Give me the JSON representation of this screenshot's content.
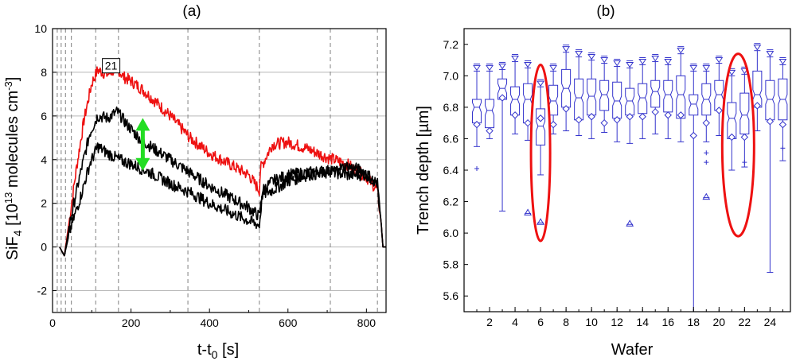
{
  "chart_data": [
    {
      "type": "line",
      "panel_label": "(a)",
      "xlabel": {
        "main": "t-t",
        "sub": "0",
        "unit": " [s]"
      },
      "ylabel": {
        "a": "SiF",
        "b": "4",
        "c": " [10",
        "d": "13",
        "e": " molecules cm",
        "f": "-3",
        "g": "]"
      },
      "xlim": [
        0,
        850
      ],
      "ylim": [
        -3,
        10
      ],
      "xticks": [
        0,
        200,
        400,
        600,
        800
      ],
      "yticks": [
        -2,
        0,
        2,
        4,
        6,
        8,
        10
      ],
      "grid_y": [
        -2,
        0,
        2,
        4,
        6,
        8
      ],
      "vlines": [
        12,
        22,
        33,
        48,
        110,
        168,
        345,
        527,
        708,
        828
      ],
      "annotation": {
        "text": "21",
        "x": 200,
        "y": 8.3
      },
      "arrow": {
        "x": 230,
        "y_top": 5.8,
        "y_bottom": 3.6,
        "color": "#22dd22"
      },
      "series": [
        {
          "name": "red",
          "color": "#ee1111",
          "points": [
            [
              18,
              0
            ],
            [
              30,
              -0.4
            ],
            [
              45,
              1.5
            ],
            [
              60,
              3.5
            ],
            [
              80,
              5.8
            ],
            [
              100,
              7.5
            ],
            [
              115,
              8.1
            ],
            [
              140,
              7.9
            ],
            [
              165,
              8.2
            ],
            [
              180,
              7.8
            ],
            [
              200,
              7.6
            ],
            [
              230,
              7.2
            ],
            [
              260,
              6.7
            ],
            [
              300,
              6.0
            ],
            [
              350,
              5.0
            ],
            [
              400,
              4.3
            ],
            [
              450,
              3.8
            ],
            [
              500,
              3.3
            ],
            [
              527,
              2.6
            ],
            [
              530,
              3.6
            ],
            [
              560,
              4.7
            ],
            [
              600,
              4.8
            ],
            [
              650,
              4.5
            ],
            [
              700,
              4.1
            ],
            [
              750,
              3.8
            ],
            [
              800,
              3.2
            ],
            [
              828,
              2.6
            ],
            [
              838,
              1.0
            ],
            [
              842,
              0
            ]
          ]
        },
        {
          "name": "black-upper",
          "color": "#000000",
          "points": [
            [
              18,
              0
            ],
            [
              30,
              -0.4
            ],
            [
              45,
              1.2
            ],
            [
              70,
              3.3
            ],
            [
              95,
              5.2
            ],
            [
              115,
              6.0
            ],
            [
              140,
              5.9
            ],
            [
              165,
              6.2
            ],
            [
              190,
              5.6
            ],
            [
              220,
              5.0
            ],
            [
              250,
              4.6
            ],
            [
              300,
              4.0
            ],
            [
              350,
              3.4
            ],
            [
              400,
              2.8
            ],
            [
              450,
              2.3
            ],
            [
              500,
              1.8
            ],
            [
              527,
              1.4
            ],
            [
              535,
              2.6
            ],
            [
              560,
              3.0
            ],
            [
              600,
              3.3
            ],
            [
              650,
              3.4
            ],
            [
              700,
              3.5
            ],
            [
              750,
              3.3
            ],
            [
              800,
              3.3
            ],
            [
              828,
              2.9
            ],
            [
              838,
              1.0
            ],
            [
              842,
              0
            ]
          ]
        },
        {
          "name": "black-lower",
          "color": "#000000",
          "points": [
            [
              18,
              0
            ],
            [
              30,
              -0.4
            ],
            [
              45,
              0.8
            ],
            [
              70,
              2.2
            ],
            [
              95,
              3.8
            ],
            [
              115,
              4.6
            ],
            [
              140,
              4.3
            ],
            [
              170,
              4.0
            ],
            [
              200,
              3.8
            ],
            [
              250,
              3.4
            ],
            [
              300,
              2.9
            ],
            [
              350,
              2.5
            ],
            [
              400,
              2.0
            ],
            [
              450,
              1.6
            ],
            [
              500,
              1.2
            ],
            [
              527,
              1.0
            ],
            [
              535,
              2.4
            ],
            [
              560,
              2.6
            ],
            [
              600,
              3.0
            ],
            [
              650,
              3.3
            ],
            [
              700,
              3.4
            ],
            [
              750,
              3.7
            ],
            [
              790,
              3.5
            ],
            [
              810,
              3.2
            ],
            [
              828,
              2.8
            ],
            [
              838,
              1.0
            ],
            [
              842,
              0
            ]
          ]
        }
      ]
    },
    {
      "type": "box",
      "panel_label": "(b)",
      "xlabel": "Wafer",
      "ylabel": "Trench depth [µm]",
      "xlim": [
        0,
        25.6
      ],
      "ylim": [
        5.5,
        7.3
      ],
      "xticks": [
        2,
        4,
        6,
        8,
        10,
        12,
        14,
        16,
        18,
        20,
        22,
        24
      ],
      "yticks": [
        5.6,
        5.8,
        6.0,
        6.2,
        6.4,
        6.6,
        6.8,
        7.0,
        7.2
      ],
      "color": "#3333cc",
      "highlight_color": "#ee1111",
      "highlights": [
        {
          "x": 6,
          "y_low": 5.95,
          "y_high": 7.07,
          "half_width": 0.5
        },
        {
          "x": 21.5,
          "y_low": 5.98,
          "y_high": 7.14,
          "half_width": 1.0
        }
      ],
      "boxes": [
        {
          "x": 1,
          "q1": 6.7,
          "median": 6.8,
          "q3": 6.85,
          "wlo": 6.55,
          "whi": 7.03,
          "mean": 6.69,
          "max": 7.03,
          "outliers": [
            6.41
          ]
        },
        {
          "x": 2,
          "q1": 6.67,
          "median": 6.78,
          "q3": 6.85,
          "wlo": 6.6,
          "whi": 7.03,
          "mean": 6.65,
          "max": 7.03,
          "outliers": []
        },
        {
          "x": 3,
          "q1": 6.85,
          "median": 6.92,
          "q3": 6.98,
          "wlo": 6.14,
          "whi": 7.04,
          "mean": 6.86,
          "max": 7.04,
          "outliers": []
        },
        {
          "x": 4,
          "q1": 6.75,
          "median": 6.85,
          "q3": 6.93,
          "wlo": 6.63,
          "whi": 7.09,
          "mean": 6.75,
          "max": 7.09,
          "outliers": []
        },
        {
          "x": 5,
          "q1": 6.7,
          "median": 6.85,
          "q3": 6.95,
          "wlo": 6.59,
          "whi": 7.05,
          "mean": 6.7,
          "max": 7.05,
          "outliers": [
            6.13
          ]
        },
        {
          "x": 6,
          "q1": 6.56,
          "median": 6.68,
          "q3": 6.79,
          "wlo": 6.37,
          "whi": 6.93,
          "mean": 6.73,
          "max": 6.93,
          "outliers": [
            6.07
          ]
        },
        {
          "x": 7,
          "q1": 6.75,
          "median": 6.84,
          "q3": 6.94,
          "wlo": 6.63,
          "whi": 7.03,
          "mean": 6.69,
          "max": 7.03,
          "outliers": []
        },
        {
          "x": 8,
          "q1": 6.8,
          "median": 6.92,
          "q3": 7.04,
          "wlo": 6.65,
          "whi": 7.15,
          "mean": 6.79,
          "max": 7.15,
          "outliers": []
        },
        {
          "x": 9,
          "q1": 6.72,
          "median": 6.86,
          "q3": 6.98,
          "wlo": 6.62,
          "whi": 7.12,
          "mean": 6.72,
          "max": 7.12,
          "outliers": []
        },
        {
          "x": 10,
          "q1": 6.75,
          "median": 6.87,
          "q3": 6.98,
          "wlo": 6.6,
          "whi": 7.1,
          "mean": 6.74,
          "max": 7.1,
          "outliers": []
        },
        {
          "x": 11,
          "q1": 6.78,
          "median": 6.88,
          "q3": 6.97,
          "wlo": 6.64,
          "whi": 7.08,
          "mean": 6.7,
          "max": 7.08,
          "outliers": []
        },
        {
          "x": 12,
          "q1": 6.73,
          "median": 6.84,
          "q3": 6.96,
          "wlo": 6.58,
          "whi": 7.06,
          "mean": 6.72,
          "max": 7.06,
          "outliers": []
        },
        {
          "x": 13,
          "q1": 6.75,
          "median": 6.84,
          "q3": 6.92,
          "wlo": 6.57,
          "whi": 7.05,
          "mean": 6.74,
          "max": 7.05,
          "outliers": [
            6.06
          ]
        },
        {
          "x": 14,
          "q1": 6.76,
          "median": 6.86,
          "q3": 6.95,
          "wlo": 6.6,
          "whi": 7.07,
          "mean": 6.74,
          "max": 7.07,
          "outliers": []
        },
        {
          "x": 15,
          "q1": 6.8,
          "median": 6.9,
          "q3": 6.97,
          "wlo": 6.63,
          "whi": 7.09,
          "mean": 6.77,
          "max": 7.09,
          "outliers": []
        },
        {
          "x": 16,
          "q1": 6.77,
          "median": 6.88,
          "q3": 6.97,
          "wlo": 6.6,
          "whi": 7.07,
          "mean": 6.75,
          "max": 7.07,
          "outliers": []
        },
        {
          "x": 17,
          "q1": 6.73,
          "median": 6.88,
          "q3": 7.0,
          "wlo": 6.58,
          "whi": 7.14,
          "mean": 6.75,
          "max": 7.14,
          "outliers": []
        },
        {
          "x": 18,
          "q1": 6.75,
          "median": 6.82,
          "q3": 6.88,
          "wlo": 5.5,
          "whi": 7.03,
          "mean": 6.62,
          "max": 7.03,
          "outliers": []
        },
        {
          "x": 19,
          "q1": 6.75,
          "median": 6.85,
          "q3": 6.95,
          "wlo": 6.58,
          "whi": 7.03,
          "mean": 6.7,
          "max": 7.03,
          "outliers": [
            6.51,
            6.45
          ],
          "extra": [
            6.23
          ]
        },
        {
          "x": 20,
          "q1": 6.78,
          "median": 6.88,
          "q3": 6.97,
          "wlo": 6.62,
          "whi": 7.08,
          "mean": 6.78,
          "max": 7.08,
          "outliers": []
        },
        {
          "x": 21,
          "q1": 6.6,
          "median": 6.73,
          "q3": 6.83,
          "wlo": 6.4,
          "whi": 7.0,
          "mean": 6.61,
          "max": 7.0,
          "outliers": []
        },
        {
          "x": 22,
          "q1": 6.63,
          "median": 6.75,
          "q3": 6.89,
          "wlo": 6.42,
          "whi": 7.01,
          "mean": 6.61,
          "max": 7.01,
          "outliers": [
            6.45
          ]
        },
        {
          "x": 23,
          "q1": 6.8,
          "median": 6.88,
          "q3": 7.03,
          "wlo": 6.65,
          "whi": 7.16,
          "mean": 6.81,
          "max": 7.16,
          "outliers": []
        },
        {
          "x": 24,
          "q1": 6.72,
          "median": 6.85,
          "q3": 6.97,
          "wlo": 5.75,
          "whi": 7.12,
          "mean": 6.71,
          "max": 7.12,
          "outliers": []
        },
        {
          "x": 25,
          "q1": 6.72,
          "median": 6.85,
          "q3": 6.98,
          "wlo": 6.46,
          "whi": 7.07,
          "mean": 6.69,
          "max": 7.07,
          "outliers": [
            6.54
          ]
        }
      ]
    }
  ]
}
